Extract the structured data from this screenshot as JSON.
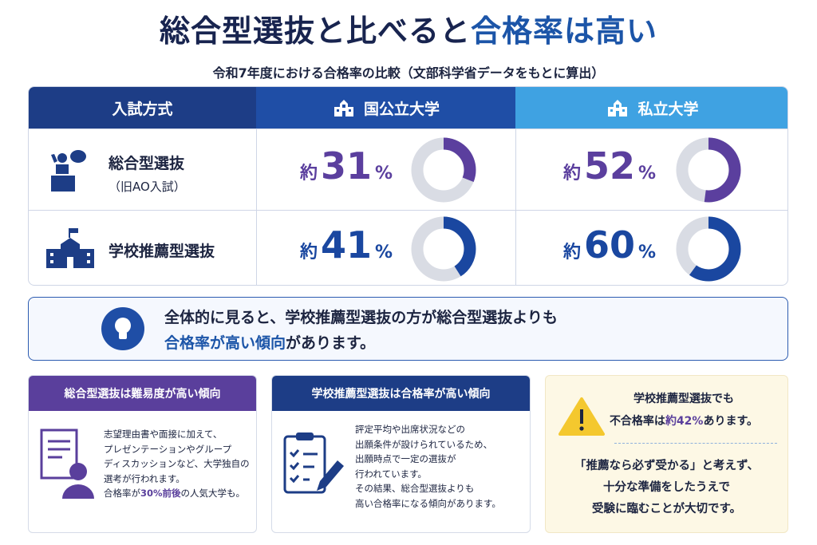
{
  "header": {
    "title_parts": [
      "総合型選抜と比べると",
      "合格率は高い"
    ],
    "subtitle": "令和7年度における合格率の比較（文部科学省データをもとに算出）"
  },
  "table": {
    "columns": [
      "入試方式",
      "国公立大学",
      "私立大学"
    ],
    "rows": [
      {
        "label": "総合型選抜",
        "sublabel": "（旧AO入試）",
        "color": "#5b3f9e",
        "cells": [
          {
            "prefix": "約",
            "value": 31,
            "unit": "%"
          },
          {
            "prefix": "約",
            "value": 52,
            "unit": "%"
          }
        ]
      },
      {
        "label": "学校推薦型選抜",
        "color": "#1a47a0",
        "cells": [
          {
            "prefix": "約",
            "value": 41,
            "unit": "%"
          },
          {
            "prefix": "約",
            "value": 60,
            "unit": "%"
          }
        ]
      }
    ]
  },
  "note": {
    "line1": "全体的に見ると、学校推薦型選抜の方が総合型選抜よりも",
    "line2_highlight": "合格率が高い傾向",
    "line2_rest": "があります。"
  },
  "cards": [
    {
      "title": "総合型選抜は難易度が高い傾向",
      "lines": [
        "志望理由書や面接に加えて、",
        "プレゼンテーションやグループ",
        "ディスカッションなど、大学独自の",
        "選考が行われます。"
      ],
      "last_line": [
        "合格率が",
        "30%前後",
        "の人気大学も。"
      ]
    },
    {
      "title": "学校推薦型選抜は合格率が高い傾向",
      "lines": [
        "評定平均や出席状況などの",
        "出願条件が設けられているため、",
        "出願時点で一定の選抜が",
        "行われています。",
        "その結果、総合型選抜よりも",
        "高い合格率になる傾向があります。"
      ]
    },
    {
      "top_line": "学校推薦型選抜でも",
      "second_line": [
        "不合格率は",
        "約42%",
        "あります。"
      ],
      "lines": [
        "「推薦なら必ず受かる」と考えず、",
        "十分な準備をしたうえで",
        "受験に臨むことが大切です。"
      ]
    }
  ]
}
